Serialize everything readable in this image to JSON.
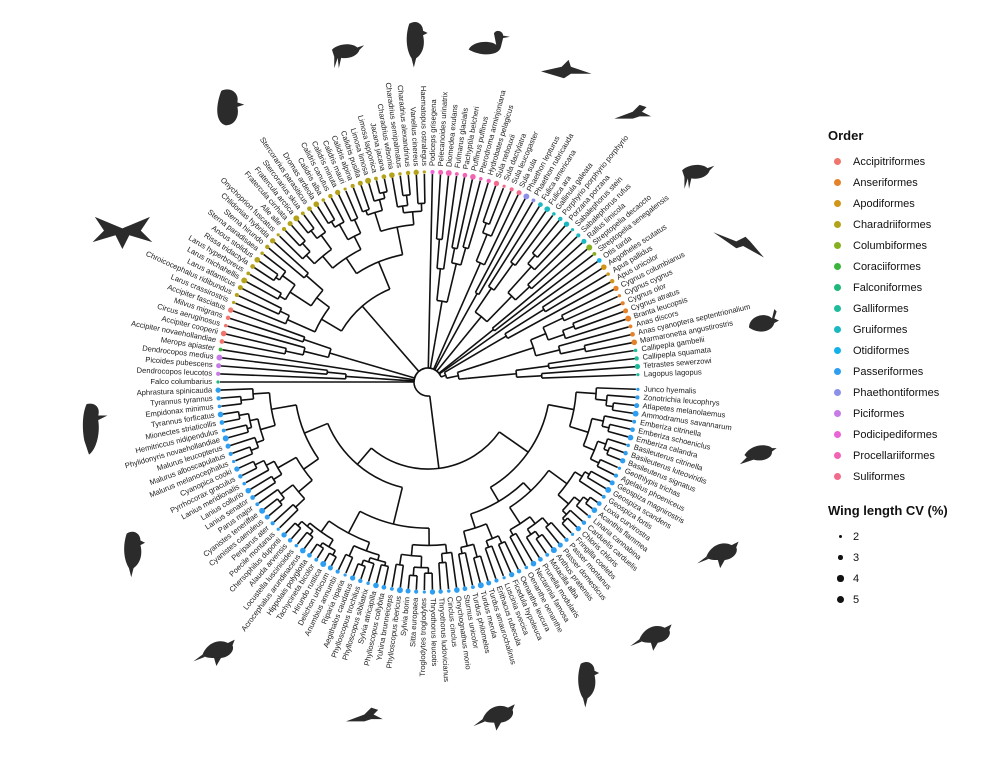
{
  "legend": {
    "order_title": "Order",
    "orders": [
      {
        "name": "Accipitriformes",
        "color": "#f0756c"
      },
      {
        "name": "Anseriformes",
        "color": "#e4822a"
      },
      {
        "name": "Apodiformes",
        "color": "#cf961a"
      },
      {
        "name": "Charadriiformes",
        "color": "#b4a31a"
      },
      {
        "name": "Columbiformes",
        "color": "#86b020"
      },
      {
        "name": "Coraciiformes",
        "color": "#3cb43c"
      },
      {
        "name": "Falconiformes",
        "color": "#21b67a"
      },
      {
        "name": "Galliformes",
        "color": "#1ebc9c"
      },
      {
        "name": "Gruiformes",
        "color": "#1ab8c0"
      },
      {
        "name": "Otidiformes",
        "color": "#14b1e8"
      },
      {
        "name": "Passeriformes",
        "color": "#2d9ef0"
      },
      {
        "name": "Phaethontiformes",
        "color": "#8d90e8"
      },
      {
        "name": "Piciformes",
        "color": "#c77be6"
      },
      {
        "name": "Podicipediformes",
        "color": "#ea64d6"
      },
      {
        "name": "Procellariiformes",
        "color": "#f263b4"
      },
      {
        "name": "Suliformes",
        "color": "#f26a8c"
      }
    ],
    "size_title": "Wing length CV (%)",
    "sizes": [
      {
        "label": "2",
        "value": 2
      },
      {
        "label": "3",
        "value": 3
      },
      {
        "label": "4",
        "value": 4
      },
      {
        "label": "5",
        "value": 5
      }
    ]
  },
  "tips": [
    {
      "name": "Lagopus lagopus",
      "order": "Galliformes"
    },
    {
      "name": "Tetrastes sewerzowi",
      "order": "Galliformes"
    },
    {
      "name": "Callipepla squamata",
      "order": "Galliformes"
    },
    {
      "name": "Callipepla gambelii",
      "order": "Galliformes"
    },
    {
      "name": "Marmaronetta angustirostris",
      "order": "Anseriformes"
    },
    {
      "name": "Anas cyanoptera septentrionalium",
      "order": "Anseriformes"
    },
    {
      "name": "Anas discors",
      "order": "Anseriformes"
    },
    {
      "name": "Branta leucopsis",
      "order": "Anseriformes"
    },
    {
      "name": "Cygnus atratus",
      "order": "Anseriformes"
    },
    {
      "name": "Cygnus olor",
      "order": "Anseriformes"
    },
    {
      "name": "Cygnus cygnus",
      "order": "Anseriformes"
    },
    {
      "name": "Cygnus columbianus",
      "order": "Anseriformes"
    },
    {
      "name": "Apus unicolor",
      "order": "Apodiformes"
    },
    {
      "name": "Apus pallidus",
      "order": "Apodiformes"
    },
    {
      "name": "Aegotheles scutatus",
      "order": "Apodiformes"
    },
    {
      "name": "Otis tarda",
      "order": "Otidiformes"
    },
    {
      "name": "Streptopelia senegalensis",
      "order": "Columbiformes"
    },
    {
      "name": "Streptopelia decaocto",
      "order": "Columbiformes"
    },
    {
      "name": "Rallus limicola",
      "order": "Gruiformes"
    },
    {
      "name": "Sabalephorus rufus",
      "order": "Gruiformes"
    },
    {
      "name": "Sabalephorus stein",
      "order": "Gruiformes"
    },
    {
      "name": "Porzana porzana",
      "order": "Gruiformes"
    },
    {
      "name": "Porphyrio porphyrio porphyrio",
      "order": "Gruiformes"
    },
    {
      "name": "Gallinula galeata",
      "order": "Gruiformes"
    },
    {
      "name": "Fulica ara",
      "order": "Gruiformes"
    },
    {
      "name": "Fulica americana",
      "order": "Gruiformes"
    },
    {
      "name": "Phaethon rubricauda",
      "order": "Phaethontiformes"
    },
    {
      "name": "Phaethon lepturus",
      "order": "Phaethontiformes"
    },
    {
      "name": "Sula sula",
      "order": "Suliformes"
    },
    {
      "name": "Sula leucogaster",
      "order": "Suliformes"
    },
    {
      "name": "Sula dactylatra",
      "order": "Suliformes"
    },
    {
      "name": "Sula nebouxii",
      "order": "Suliformes"
    },
    {
      "name": "Hydrobates pelagicus",
      "order": "Procellariiformes"
    },
    {
      "name": "Pterodroma arminjoniana",
      "order": "Procellariiformes"
    },
    {
      "name": "Puffinus puffinus",
      "order": "Procellariiformes"
    },
    {
      "name": "Pachyptila belcheri",
      "order": "Procellariiformes"
    },
    {
      "name": "Fulmarus glacialis",
      "order": "Procellariiformes"
    },
    {
      "name": "Diomedea exulans",
      "order": "Procellariiformes"
    },
    {
      "name": "Pelecanoides urinatrix",
      "order": "Procellariiformes"
    },
    {
      "name": "Podiceps grisegena",
      "order": "Podicipediformes"
    },
    {
      "name": "Haematopus ostralegus",
      "order": "Charadriiformes"
    },
    {
      "name": "Vanellus cinereus",
      "order": "Charadriiformes"
    },
    {
      "name": "Charadrius alexandrinus",
      "order": "Charadriiformes"
    },
    {
      "name": "Charadrius semipalmatus",
      "order": "Charadriiformes"
    },
    {
      "name": "Charadrius wilsonia",
      "order": "Charadriiformes"
    },
    {
      "name": "Jacana jacana",
      "order": "Charadriiformes"
    },
    {
      "name": "Limosa lapponica",
      "order": "Charadriiformes"
    },
    {
      "name": "Limosa limosa",
      "order": "Charadriiformes"
    },
    {
      "name": "Calidris pusilla",
      "order": "Charadriiformes"
    },
    {
      "name": "Calidris alpina",
      "order": "Charadriiformes"
    },
    {
      "name": "Calidris mauri",
      "order": "Charadriiformes"
    },
    {
      "name": "Calidris minuta",
      "order": "Charadriiformes"
    },
    {
      "name": "Calidris canutus",
      "order": "Charadriiformes"
    },
    {
      "name": "Calidris alba",
      "order": "Charadriiformes"
    },
    {
      "name": "Dromas ardeola",
      "order": "Charadriiformes"
    },
    {
      "name": "Stercorarius parasiticus",
      "order": "Charadriiformes"
    },
    {
      "name": "Stercorarius skua",
      "order": "Charadriiformes"
    },
    {
      "name": "Fratercula arctica",
      "order": "Charadriiformes"
    },
    {
      "name": "Fratercula cirrhata",
      "order": "Charadriiformes"
    },
    {
      "name": "Alle alle",
      "order": "Charadriiformes"
    },
    {
      "name": "Onychoprion fuscatus",
      "order": "Charadriiformes"
    },
    {
      "name": "Chlidonias hybrida",
      "order": "Charadriiformes"
    },
    {
      "name": "Sterna hirundo",
      "order": "Charadriiformes"
    },
    {
      "name": "Sterna paradisaea",
      "order": "Charadriiformes"
    },
    {
      "name": "Anous stolidus",
      "order": "Charadriiformes"
    },
    {
      "name": "Rissa tridactyla",
      "order": "Charadriiformes"
    },
    {
      "name": "Larus hyperboreus",
      "order": "Charadriiformes"
    },
    {
      "name": "Larus michahellis",
      "order": "Charadriiformes"
    },
    {
      "name": "Larus atlanticus",
      "order": "Charadriiformes"
    },
    {
      "name": "Chroicocephalus ridibundus",
      "order": "Charadriiformes"
    },
    {
      "name": "Larus crassirostris",
      "order": "Charadriiformes"
    },
    {
      "name": "Accipiter fasciatus",
      "order": "Accipitriformes"
    },
    {
      "name": "Milvus migrans",
      "order": "Accipitriformes"
    },
    {
      "name": "Circus aeruginosus",
      "order": "Accipitriformes"
    },
    {
      "name": "Accipiter cooperii",
      "order": "Accipitriformes"
    },
    {
      "name": "Accipiter novaehollandiae",
      "order": "Accipitriformes"
    },
    {
      "name": "Merops apiaster",
      "order": "Coraciiformes"
    },
    {
      "name": "Dendrocopos medius",
      "order": "Piciformes"
    },
    {
      "name": "Picoides pubescens",
      "order": "Piciformes"
    },
    {
      "name": "Dendrocopos leucotos",
      "order": "Piciformes"
    },
    {
      "name": "Falco columbarius",
      "order": "Falconiformes"
    },
    {
      "name": "Aphrastura spinicauda",
      "order": "Passeriformes"
    },
    {
      "name": "Tyrannus tyrannus",
      "order": "Passeriformes"
    },
    {
      "name": "Empidonax minimus",
      "order": "Passeriformes"
    },
    {
      "name": "Tyrannus forficatus",
      "order": "Passeriformes"
    },
    {
      "name": "Mionectes striaticollis",
      "order": "Passeriformes"
    },
    {
      "name": "Hemitriccus nidipendulus",
      "order": "Passeriformes"
    },
    {
      "name": "Phylidonyris novaehollandiae",
      "order": "Passeriformes"
    },
    {
      "name": "Malurus leucopterus",
      "order": "Passeriformes"
    },
    {
      "name": "Malurus alboscapulatus",
      "order": "Passeriformes"
    },
    {
      "name": "Malurus melanocephalus",
      "order": "Passeriformes"
    },
    {
      "name": "Cyanopica cooki",
      "order": "Passeriformes"
    },
    {
      "name": "Pyrrhocorax graculus",
      "order": "Passeriformes"
    },
    {
      "name": "Lanius meridionalis",
      "order": "Passeriformes"
    },
    {
      "name": "Lanius collurio",
      "order": "Passeriformes"
    },
    {
      "name": "Lanius senator",
      "order": "Passeriformes"
    },
    {
      "name": "Parus major",
      "order": "Passeriformes"
    },
    {
      "name": "Cyanistes teneriffae",
      "order": "Passeriformes"
    },
    {
      "name": "Cyanistes caeruleus",
      "order": "Passeriformes"
    },
    {
      "name": "Periparus ater",
      "order": "Passeriformes"
    },
    {
      "name": "Poecile montanus",
      "order": "Passeriformes"
    },
    {
      "name": "Chersophilus duponti",
      "order": "Passeriformes"
    },
    {
      "name": "Alauda arvensis",
      "order": "Passeriformes"
    },
    {
      "name": "Locustella luscinioides",
      "order": "Passeriformes"
    },
    {
      "name": "Acrocephalus arundinaceus",
      "order": "Passeriformes"
    },
    {
      "name": "Hippolais polyglotta",
      "order": "Passeriformes"
    },
    {
      "name": "Tachycineta bicolor",
      "order": "Passeriformes"
    },
    {
      "name": "Hirundo rustica",
      "order": "Passeriformes"
    },
    {
      "name": "Delichon urbicum",
      "order": "Passeriformes"
    },
    {
      "name": "Anumbius annumbi",
      "order": "Passeriformes"
    },
    {
      "name": "Riparia riparia",
      "order": "Passeriformes"
    },
    {
      "name": "Aegithalos caudatus",
      "order": "Passeriformes"
    },
    {
      "name": "Phylloscopus trochilus",
      "order": "Passeriformes"
    },
    {
      "name": "Phylloscopus sibilatrix",
      "order": "Passeriformes"
    },
    {
      "name": "Sylvia atricapilla",
      "order": "Passeriformes"
    },
    {
      "name": "Phylloscopus collybita",
      "order": "Passeriformes"
    },
    {
      "name": "Yuhina brunneiceps",
      "order": "Passeriformes"
    },
    {
      "name": "Phylloscopus ibericus",
      "order": "Passeriformes"
    },
    {
      "name": "Sylvia borin",
      "order": "Passeriformes"
    },
    {
      "name": "Sitta europaea",
      "order": "Passeriformes"
    },
    {
      "name": "Troglodytes troglodytes",
      "order": "Passeriformes"
    },
    {
      "name": "Thryothorus leucotis",
      "order": "Passeriformes"
    },
    {
      "name": "Thryothorus ludovicianus",
      "order": "Passeriformes"
    },
    {
      "name": "Cinclus cinclus",
      "order": "Passeriformes"
    },
    {
      "name": "Onychognathus morio",
      "order": "Passeriformes"
    },
    {
      "name": "Sturnus unicolor",
      "order": "Passeriformes"
    },
    {
      "name": "Turdus philomelos",
      "order": "Passeriformes"
    },
    {
      "name": "Turdus merula",
      "order": "Passeriformes"
    },
    {
      "name": "Turdus amaurochalinus",
      "order": "Passeriformes"
    },
    {
      "name": "Erithacus rubecula",
      "order": "Passeriformes"
    },
    {
      "name": "Luscinia svecica",
      "order": "Passeriformes"
    },
    {
      "name": "Ficedula hypoleuca",
      "order": "Passeriformes"
    },
    {
      "name": "Oenanthe leucura",
      "order": "Passeriformes"
    },
    {
      "name": "Oenanthe oenanthe",
      "order": "Passeriformes"
    },
    {
      "name": "Nectarinia famosa",
      "order": "Passeriformes"
    },
    {
      "name": "Prunella modularis",
      "order": "Passeriformes"
    },
    {
      "name": "Motacilla alba",
      "order": "Passeriformes"
    },
    {
      "name": "Anthus pratensis",
      "order": "Passeriformes"
    },
    {
      "name": "Passer domesticus",
      "order": "Passeriformes"
    },
    {
      "name": "Passer montanus",
      "order": "Passeriformes"
    },
    {
      "name": "Fringilla coelebs",
      "order": "Passeriformes"
    },
    {
      "name": "Chloris chloris",
      "order": "Passeriformes"
    },
    {
      "name": "Carduelis carduelis",
      "order": "Passeriformes"
    },
    {
      "name": "Linaria cannabina",
      "order": "Passeriformes"
    },
    {
      "name": "Acanthis flammea",
      "order": "Passeriformes"
    },
    {
      "name": "Loxia curvirostra",
      "order": "Passeriformes"
    },
    {
      "name": "Geospiza fortis",
      "order": "Passeriformes"
    },
    {
      "name": "Geospiza scandens",
      "order": "Passeriformes"
    },
    {
      "name": "Geospiza magnirostris",
      "order": "Passeriformes"
    },
    {
      "name": "Agelaius phoeniceus",
      "order": "Passeriformes"
    },
    {
      "name": "Geothlypis trichas",
      "order": "Passeriformes"
    },
    {
      "name": "Basileuterus signatus",
      "order": "Passeriformes"
    },
    {
      "name": "Basileuterus luteoviridis",
      "order": "Passeriformes"
    },
    {
      "name": "Basileuterus citrinella",
      "order": "Passeriformes"
    },
    {
      "name": "Emberiza calandra",
      "order": "Passeriformes"
    },
    {
      "name": "Emberiza schoeniclus",
      "order": "Passeriformes"
    },
    {
      "name": "Emberiza citrinella",
      "order": "Passeriformes"
    },
    {
      "name": "Ammodramus savannarum",
      "order": "Passeriformes"
    },
    {
      "name": "Atlapetes melanolaemus",
      "order": "Passeriformes"
    },
    {
      "name": "Zonotrichia leucophrys",
      "order": "Passeriformes"
    },
    {
      "name": "Junco hyemalis",
      "order": "Passeriformes"
    }
  ],
  "silhouettes": [
    {
      "name": "woodpecker-silhouette",
      "kind": "woodpecker"
    },
    {
      "name": "kite-silhouette",
      "kind": "raptor"
    },
    {
      "name": "puffin-silhouette",
      "kind": "puffin"
    },
    {
      "name": "plover-silhouette",
      "kind": "wader"
    },
    {
      "name": "hornbill-silhouette",
      "kind": "perched"
    },
    {
      "name": "grebe-silhouette",
      "kind": "duck"
    },
    {
      "name": "shearwater-silhouette",
      "kind": "seabird"
    },
    {
      "name": "tropicbird-silhouette",
      "kind": "longtail"
    },
    {
      "name": "rail-silhouette",
      "kind": "wader"
    },
    {
      "name": "swift-silhouette",
      "kind": "swift"
    },
    {
      "name": "quail-silhouette",
      "kind": "quail"
    },
    {
      "name": "pigeon-silhouette",
      "kind": "pigeon"
    },
    {
      "name": "sparrow-silhouette",
      "kind": "songbird"
    },
    {
      "name": "finch-silhouette",
      "kind": "songbird"
    },
    {
      "name": "bunting-silhouette",
      "kind": "perched"
    },
    {
      "name": "thrush-silhouette",
      "kind": "songbird"
    },
    {
      "name": "warbler-silhouette",
      "kind": "longtail"
    },
    {
      "name": "tit-silhouette",
      "kind": "songbird"
    },
    {
      "name": "magpie-silhouette",
      "kind": "perched"
    }
  ]
}
